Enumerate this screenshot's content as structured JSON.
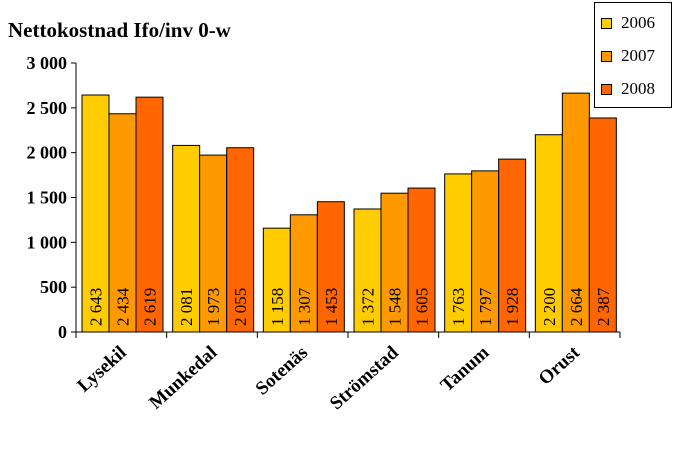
{
  "chart_data": {
    "type": "bar",
    "title": "Nettokostnad Ifo/inv 0-w",
    "categories": [
      "Lysekil",
      "Munkedal",
      "Sotenäs",
      "Strömstad",
      "Tanum",
      "Orust"
    ],
    "series": [
      {
        "name": "2006",
        "color": "#FFCC00",
        "values": [
          2643,
          2081,
          1158,
          1372,
          1763,
          2200
        ]
      },
      {
        "name": "2007",
        "color": "#FF9900",
        "values": [
          2434,
          1973,
          1307,
          1548,
          1797,
          2664
        ]
      },
      {
        "name": "2008",
        "color": "#FF6600",
        "values": [
          2619,
          2055,
          1453,
          1605,
          1928,
          2387
        ]
      }
    ],
    "data_labels": [
      [
        "2 643",
        "2 434",
        "2 619"
      ],
      [
        "2 081",
        "1 973",
        "2 055"
      ],
      [
        "1 158",
        "1 307",
        "1 453"
      ],
      [
        "1 372",
        "1 548",
        "1 605"
      ],
      [
        "1 763",
        "1 797",
        "1 928"
      ],
      [
        "2 200",
        "2 664",
        "2 387"
      ]
    ],
    "yticks": [
      0,
      500,
      1000,
      1500,
      2000,
      2500,
      3000
    ],
    "ytick_labels": [
      "0",
      "500",
      "1 000",
      "1 500",
      "2 000",
      "2 500",
      "3 000"
    ],
    "ylim": [
      0,
      3000
    ],
    "xlabel": "",
    "ylabel": "",
    "grid": false,
    "legend_position": "top-right"
  }
}
